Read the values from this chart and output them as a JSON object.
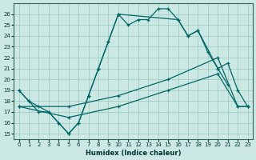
{
  "xlabel": "Humidex (Indice chaleur)",
  "bg_color": "#cce8e4",
  "grid_color": "#99ccbb",
  "line_color": "#006666",
  "xlim": [
    -0.5,
    23.5
  ],
  "ylim": [
    14.5,
    27.0
  ],
  "xticks": [
    0,
    1,
    2,
    3,
    4,
    5,
    6,
    7,
    8,
    9,
    10,
    11,
    12,
    13,
    14,
    15,
    16,
    17,
    18,
    19,
    20,
    21,
    22,
    23
  ],
  "yticks": [
    15,
    16,
    17,
    18,
    19,
    20,
    21,
    22,
    23,
    24,
    25,
    26
  ],
  "curve1_x": [
    0,
    1,
    2,
    3,
    4,
    5,
    6,
    7,
    8,
    9,
    10,
    11,
    12,
    13,
    14,
    15,
    16,
    17,
    18,
    19,
    20,
    21
  ],
  "curve1_y": [
    19.0,
    18.0,
    17.0,
    17.0,
    16.0,
    15.0,
    16.0,
    18.5,
    21.0,
    23.5,
    26.0,
    25.0,
    25.5,
    25.5,
    26.5,
    26.5,
    25.5,
    24.0,
    24.5,
    22.5,
    21.0,
    19.5
  ],
  "curve2_x": [
    0,
    1,
    2,
    3,
    4,
    5,
    6,
    7,
    8,
    9,
    10,
    16,
    17,
    18,
    20,
    21,
    22,
    23
  ],
  "curve2_y": [
    19.0,
    18.0,
    17.5,
    17.0,
    16.0,
    15.0,
    16.0,
    18.5,
    21.0,
    23.5,
    26.0,
    25.5,
    24.0,
    24.5,
    21.0,
    21.5,
    19.0,
    17.5
  ],
  "curve3_x": [
    0,
    5,
    10,
    15,
    20,
    22,
    23
  ],
  "curve3_y": [
    17.5,
    17.5,
    18.5,
    20.0,
    22.0,
    17.5,
    17.5
  ],
  "curve4_x": [
    0,
    5,
    10,
    15,
    20,
    22,
    23
  ],
  "curve4_y": [
    17.5,
    16.5,
    17.5,
    19.0,
    20.5,
    17.5,
    17.5
  ]
}
